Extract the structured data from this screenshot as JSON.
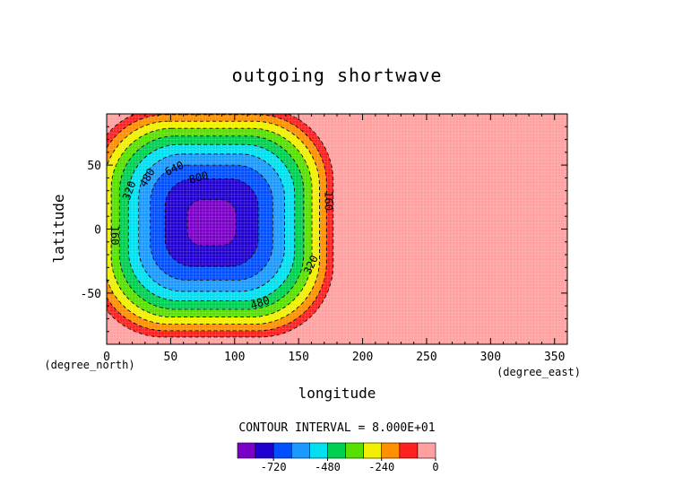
{
  "chart_data": {
    "type": "heatmap",
    "title": "outgoing shortwave",
    "xlabel": "longitude",
    "ylabel": "latitude",
    "x_units": "(degree_east)",
    "y_units": "(degree_north)",
    "xlim": [
      0,
      360
    ],
    "ylim": [
      -90,
      90
    ],
    "x_ticks": [
      0,
      50,
      100,
      150,
      200,
      250,
      300,
      350
    ],
    "y_ticks": [
      -50,
      0,
      50
    ],
    "contour_labels": [
      {
        "text": "160",
        "x": 6,
        "y": -5,
        "rot": 90
      },
      {
        "text": "320",
        "x": 18,
        "y": 30,
        "rot": -70
      },
      {
        "text": "480",
        "x": 32,
        "y": 40,
        "rot": -60
      },
      {
        "text": "640",
        "x": 53,
        "y": 47,
        "rot": -25
      },
      {
        "text": "800",
        "x": 72,
        "y": 40,
        "rot": -15
      },
      {
        "text": "160",
        "x": 173,
        "y": 22,
        "rot": 90
      },
      {
        "text": "320",
        "x": 160,
        "y": -28,
        "rot": -65
      },
      {
        "text": "480",
        "x": 120,
        "y": -58,
        "rot": -18
      }
    ],
    "field": {
      "center": [
        82,
        5
      ],
      "lon_halfwidth": 100,
      "lat_halfwidth": 94,
      "min_value": -830,
      "levels": [
        -800,
        -720,
        -640,
        -560,
        -480,
        -400,
        -320,
        -240,
        -160,
        -80,
        0
      ]
    },
    "colorbar": {
      "label": "CONTOUR INTERVAL = 8.000E+01",
      "tick_labels": [
        "-720",
        "-480",
        "-240",
        "0"
      ],
      "colors": [
        "#7a00c8",
        "#2000d0",
        "#0050ff",
        "#1a9aff",
        "#00e0f0",
        "#00d050",
        "#58e000",
        "#f0f000",
        "#ff9000",
        "#ff2020",
        "#ffa0a0"
      ]
    }
  }
}
